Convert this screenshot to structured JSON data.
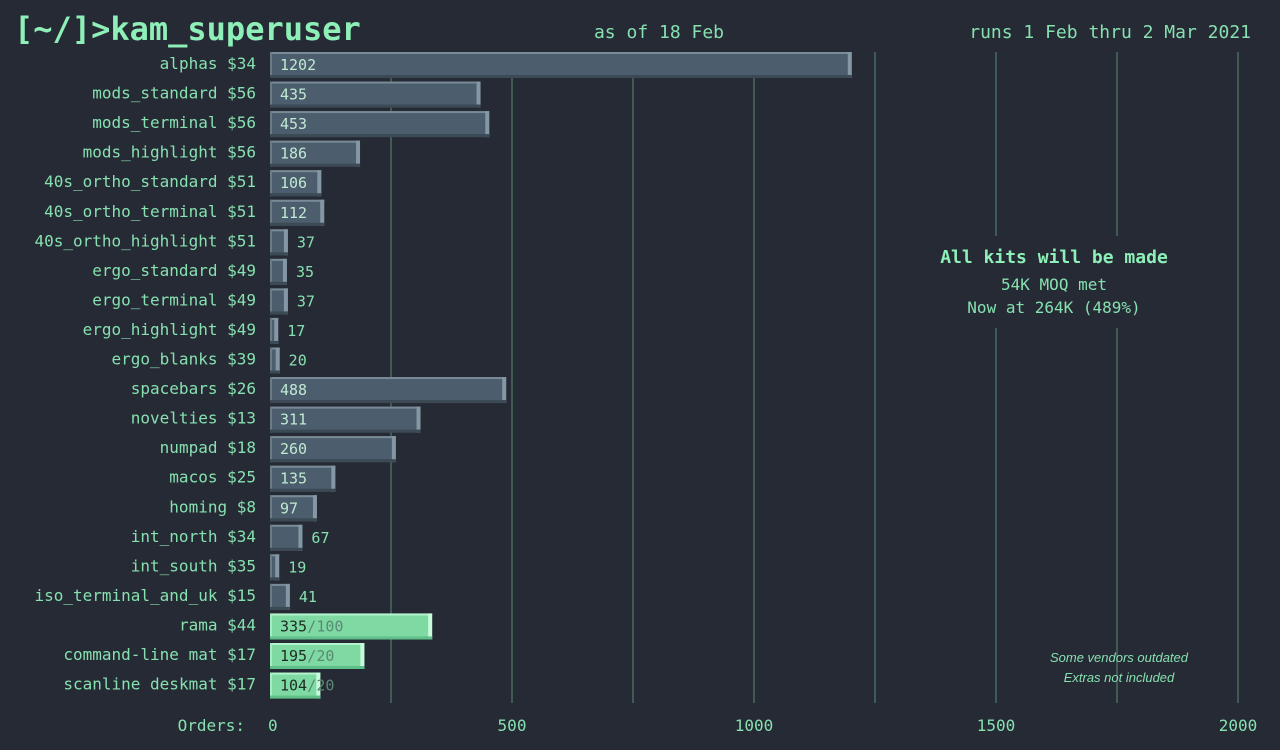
{
  "header": {
    "brand": "[~/]>kam_superuser",
    "as_of": "as of 18 Feb",
    "run_dates": "runs 1 Feb thru 2 Mar 2021"
  },
  "annotation": {
    "title": "All kits will be made",
    "line1": "54K MOQ met",
    "line2": "Now at 264K (489%)"
  },
  "notes": [
    "Some vendors outdated",
    "Extras not included"
  ],
  "colors": {
    "background": "#262a34",
    "text": "#86e0b0",
    "bar_kit": "#4c5e6d",
    "bar_extra": "#7ed9a3",
    "grid": "#5a8a74"
  },
  "chart_data": {
    "type": "bar",
    "orientation": "horizontal",
    "xlabel": "Orders:",
    "xlim": [
      0,
      2000
    ],
    "xticks": [
      0,
      500,
      1000,
      1500,
      2000
    ],
    "grid": true,
    "categories": [
      "alphas $34",
      "mods_standard $56",
      "mods_terminal $56",
      "mods_highlight $56",
      "40s_ortho_standard $51",
      "40s_ortho_terminal $51",
      "40s_ortho_highlight $51",
      "ergo_standard $49",
      "ergo_terminal $49",
      "ergo_highlight $49",
      "ergo_blanks $39",
      "spacebars $26",
      "novelties $13",
      "numpad $18",
      "macos $25",
      "homing  $8",
      "int_north $34",
      "int_south $35",
      "iso_terminal_and_uk $15",
      "rama $44",
      "command-line mat $17",
      "scanline deskmat $17"
    ],
    "values": [
      1202,
      435,
      453,
      186,
      106,
      112,
      37,
      35,
      37,
      17,
      20,
      488,
      311,
      260,
      135,
      97,
      67,
      19,
      41,
      335,
      195,
      104
    ],
    "targets": [
      null,
      null,
      null,
      null,
      null,
      null,
      null,
      null,
      null,
      null,
      null,
      null,
      null,
      null,
      null,
      null,
      null,
      null,
      null,
      "/100",
      "/20",
      "/20"
    ],
    "highlighted": [
      false,
      false,
      false,
      false,
      false,
      false,
      false,
      false,
      false,
      false,
      false,
      false,
      false,
      false,
      false,
      false,
      false,
      false,
      false,
      true,
      true,
      true
    ]
  }
}
